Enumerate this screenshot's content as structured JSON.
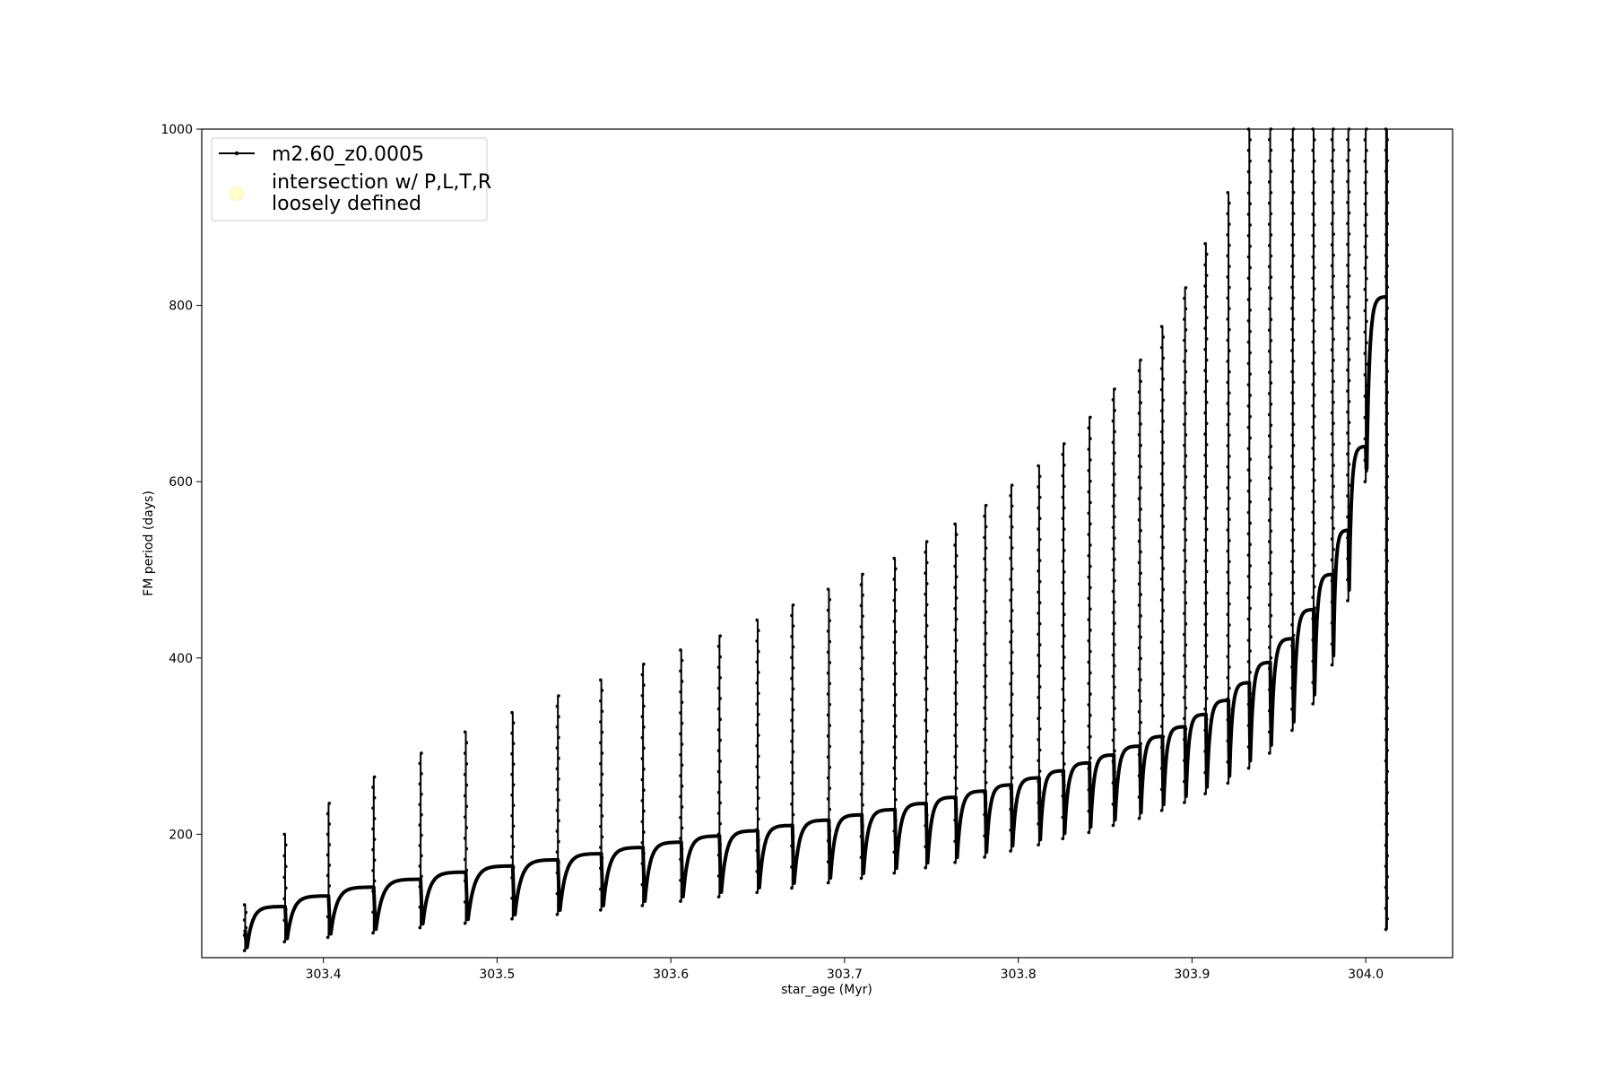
{
  "chart_data": {
    "type": "line",
    "title": "",
    "xlabel": "star_age (Myr)",
    "ylabel": "FM period (days)",
    "xlim": [
      303.33,
      304.05
    ],
    "ylim": [
      60,
      1000
    ],
    "xticks": [
      303.4,
      303.5,
      303.6,
      303.7,
      303.8,
      303.9,
      304.0
    ],
    "yticks": [
      200,
      400,
      600,
      800,
      1000
    ],
    "grid": false,
    "legend_position": "top-left",
    "series": [
      {
        "name": "m2.60_z0.0005",
        "color": "#000000",
        "marker": "dot",
        "description_points": "thermal pulse cycles: [pulse age, spike peak period, dip minimum period, plateau period before next pulse]",
        "pulses": [
          [
            303.355,
            120,
            68,
            118
          ],
          [
            303.378,
            200,
            78,
            130
          ],
          [
            303.403,
            235,
            83,
            140
          ],
          [
            303.429,
            265,
            88,
            149
          ],
          [
            303.456,
            292,
            94,
            157
          ],
          [
            303.482,
            316,
            99,
            164
          ],
          [
            303.509,
            338,
            104,
            171
          ],
          [
            303.535,
            357,
            109,
            178
          ],
          [
            303.56,
            375,
            114,
            185
          ],
          [
            303.584,
            393,
            119,
            191
          ],
          [
            303.606,
            409,
            124,
            198
          ],
          [
            303.628,
            425,
            129,
            204
          ],
          [
            303.65,
            443,
            134,
            210
          ],
          [
            303.67,
            460,
            139,
            216
          ],
          [
            303.691,
            478,
            145,
            222
          ],
          [
            303.71,
            495,
            150,
            228
          ],
          [
            303.729,
            513,
            156,
            235
          ],
          [
            303.747,
            532,
            162,
            242
          ],
          [
            303.764,
            552,
            168,
            249
          ],
          [
            303.781,
            573,
            174,
            256
          ],
          [
            303.796,
            596,
            181,
            264
          ],
          [
            303.812,
            618,
            188,
            272
          ],
          [
            303.826,
            643,
            195,
            281
          ],
          [
            303.841,
            673,
            202,
            290
          ],
          [
            303.855,
            705,
            210,
            300
          ],
          [
            303.87,
            738,
            218,
            311
          ],
          [
            303.883,
            776,
            227,
            322
          ],
          [
            303.896,
            820,
            236,
            336
          ],
          [
            303.908,
            870,
            246,
            352
          ],
          [
            303.921,
            928,
            258,
            372
          ],
          [
            303.933,
            1000,
            275,
            395
          ],
          [
            303.945,
            1000,
            292,
            422
          ],
          [
            303.958,
            1000,
            318,
            455
          ],
          [
            303.97,
            1000,
            348,
            495
          ],
          [
            303.981,
            1000,
            392,
            545
          ],
          [
            303.99,
            1000,
            465,
            640
          ],
          [
            304.0,
            1000,
            600,
            810
          ],
          [
            304.012,
            1000,
            92,
            1000
          ]
        ]
      },
      {
        "name": "intersection w/ P,L,T,R\nloosely defined",
        "color": "#ffffcc",
        "marker": "circle",
        "values": []
      }
    ]
  }
}
